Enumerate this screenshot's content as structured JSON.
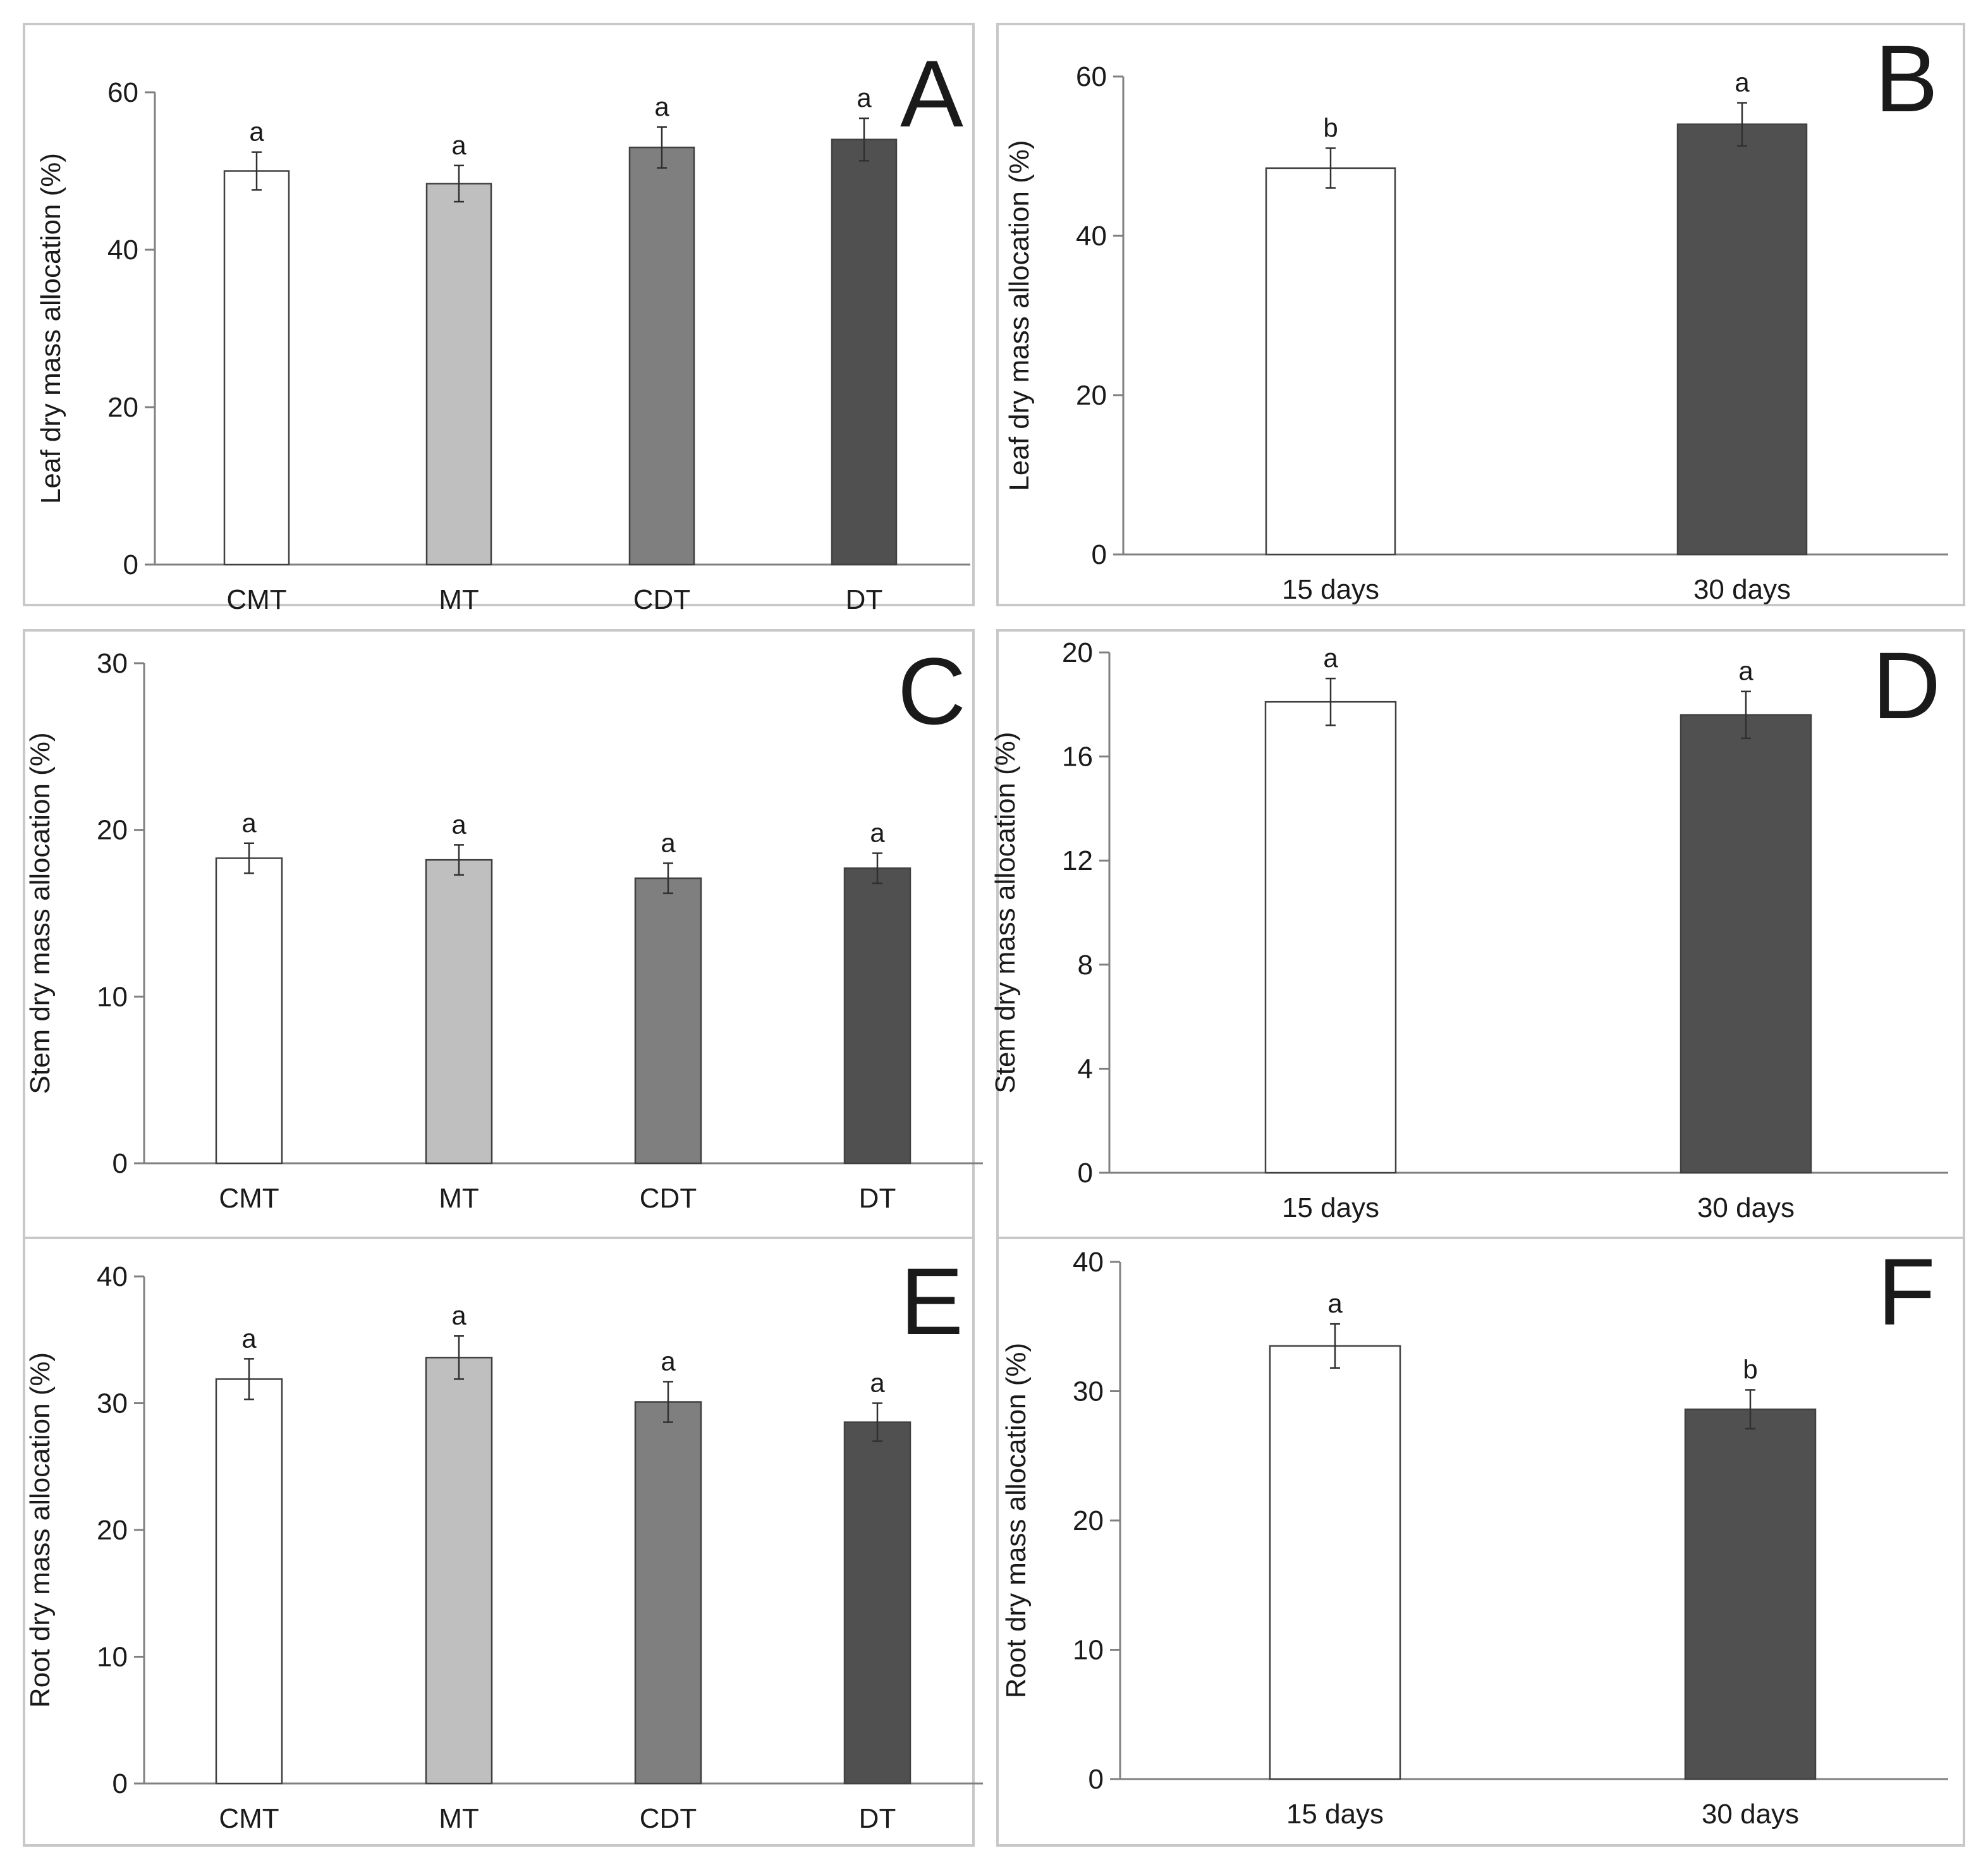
{
  "chart_data": [
    {
      "panel": "A",
      "type": "bar",
      "categories": [
        "CMT",
        "MT",
        "CDT",
        "DT"
      ],
      "values": [
        50.0,
        48.4,
        53.0,
        54.0
      ],
      "errors": [
        2.4,
        2.3,
        2.6,
        2.7
      ],
      "significance": [
        "a",
        "a",
        "a",
        "a"
      ],
      "colors": [
        "#ffffff",
        "#bfbfbf",
        "#7f7f7f",
        "#505050"
      ],
      "ylabel": "Leaf dry mass allocation (%)",
      "xlabel": "",
      "ylim": [
        0,
        60
      ],
      "yticks": [
        0,
        20,
        40,
        60
      ],
      "grid": false
    },
    {
      "panel": "B",
      "type": "bar",
      "categories": [
        "15 days",
        "30 days"
      ],
      "values": [
        48.5,
        54.0
      ],
      "errors": [
        2.5,
        2.7
      ],
      "significance": [
        "b",
        "a"
      ],
      "colors": [
        "#ffffff",
        "#505050"
      ],
      "ylabel": "Leaf dry mass allocation (%)",
      "xlabel": "",
      "ylim": [
        0,
        60
      ],
      "yticks": [
        0,
        20,
        40,
        60
      ],
      "grid": false
    },
    {
      "panel": "C",
      "type": "bar",
      "categories": [
        "CMT",
        "MT",
        "CDT",
        "DT"
      ],
      "values": [
        18.3,
        18.2,
        17.1,
        17.7
      ],
      "errors": [
        0.9,
        0.9,
        0.9,
        0.9
      ],
      "significance": [
        "a",
        "a",
        "a",
        "a"
      ],
      "colors": [
        "#ffffff",
        "#bfbfbf",
        "#7f7f7f",
        "#505050"
      ],
      "ylabel": "Stem dry mass allocation (%)",
      "xlabel": "",
      "ylim": [
        0,
        30
      ],
      "yticks": [
        0,
        10,
        20,
        30
      ],
      "grid": false
    },
    {
      "panel": "D",
      "type": "bar",
      "categories": [
        "15 days",
        "30 days"
      ],
      "values": [
        18.1,
        17.6
      ],
      "errors": [
        0.9,
        0.9
      ],
      "significance": [
        "a",
        "a"
      ],
      "colors": [
        "#ffffff",
        "#505050"
      ],
      "ylabel": "Stem dry mass allocation (%)",
      "xlabel": "",
      "ylim": [
        0,
        20
      ],
      "yticks": [
        0,
        4,
        8,
        12,
        16,
        20
      ],
      "grid": false
    },
    {
      "panel": "E",
      "type": "bar",
      "categories": [
        "CMT",
        "MT",
        "CDT",
        "DT"
      ],
      "values": [
        31.9,
        33.6,
        30.1,
        28.5
      ],
      "errors": [
        1.6,
        1.7,
        1.6,
        1.5
      ],
      "significance": [
        "a",
        "a",
        "a",
        "a"
      ],
      "colors": [
        "#ffffff",
        "#bfbfbf",
        "#7f7f7f",
        "#505050"
      ],
      "ylabel": "Root dry mass allocation (%)",
      "xlabel": "",
      "ylim": [
        0,
        40
      ],
      "yticks": [
        0,
        10,
        20,
        30,
        40
      ],
      "grid": false
    },
    {
      "panel": "F",
      "type": "bar",
      "categories": [
        "15 days",
        "30 days"
      ],
      "values": [
        33.5,
        28.6
      ],
      "errors": [
        1.7,
        1.5
      ],
      "significance": [
        "a",
        "b"
      ],
      "colors": [
        "#ffffff",
        "#505050"
      ],
      "ylabel": "Root dry mass allocation (%)",
      "xlabel": "",
      "ylim": [
        0,
        40
      ],
      "yticks": [
        0,
        10,
        20,
        30,
        40
      ],
      "grid": false
    }
  ]
}
